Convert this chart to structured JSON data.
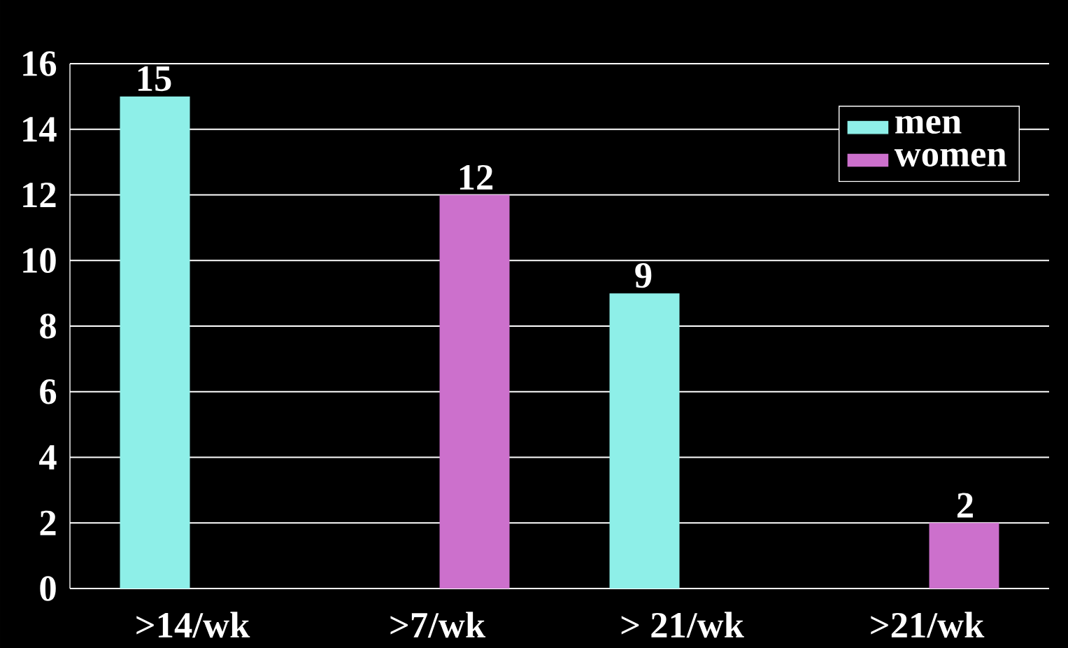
{
  "chart_data": {
    "type": "bar",
    "categories": [
      ">14/wk",
      ">7/wk",
      "> 21/wk",
      ">21/wk"
    ],
    "series": [
      {
        "name": "men",
        "color": "#8eefe8",
        "values": [
          15,
          null,
          9,
          null
        ]
      },
      {
        "name": "women",
        "color": "#cc70cc",
        "values": [
          null,
          12,
          null,
          2
        ]
      }
    ],
    "ylim": [
      0,
      16
    ],
    "yticks": [
      0,
      2,
      4,
      6,
      8,
      10,
      12,
      14,
      16
    ],
    "grid": "y",
    "legend": "top right",
    "data_labels": true
  }
}
